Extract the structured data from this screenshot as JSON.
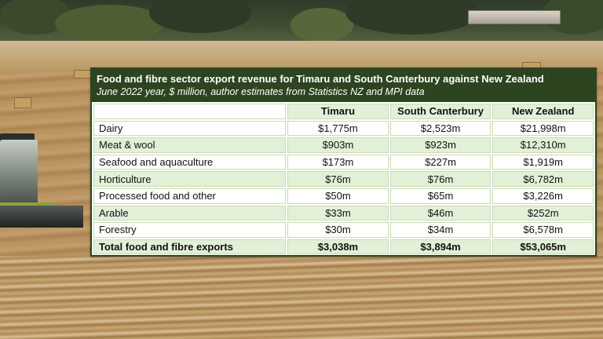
{
  "table": {
    "title": "Food and fibre sector export revenue for Timaru and South Canterbury against New Zealand",
    "subtitle": "June 2022 year, $ million, author estimates from Statistics NZ and MPI data",
    "columns": [
      "",
      "Timaru",
      "South Canterbury",
      "New Zealand"
    ],
    "rows": [
      {
        "label": "Dairy",
        "timaru": "$1,775m",
        "south_canterbury": "$2,523m",
        "new_zealand": "$21,998m"
      },
      {
        "label": "Meat & wool",
        "timaru": "$903m",
        "south_canterbury": "$923m",
        "new_zealand": "$12,310m"
      },
      {
        "label": "Seafood and aquaculture",
        "timaru": "$173m",
        "south_canterbury": "$227m",
        "new_zealand": "$1,919m"
      },
      {
        "label": "Horticulture",
        "timaru": "$76m",
        "south_canterbury": "$76m",
        "new_zealand": "$6,782m"
      },
      {
        "label": "Processed food and other",
        "timaru": "$50m",
        "south_canterbury": "$65m",
        "new_zealand": "$3,226m"
      },
      {
        "label": "Arable",
        "timaru": "$33m",
        "south_canterbury": "$46m",
        "new_zealand": "$252m"
      },
      {
        "label": "Forestry",
        "timaru": "$30m",
        "south_canterbury": "$34m",
        "new_zealand": "$6,578m"
      }
    ],
    "total": {
      "label": "Total food and fibre exports",
      "timaru": "$3,038m",
      "south_canterbury": "$3,894m",
      "new_zealand": "$53,065m"
    }
  },
  "colors": {
    "header_green": "#2c4520",
    "row_tint": "#e2f0d8"
  }
}
